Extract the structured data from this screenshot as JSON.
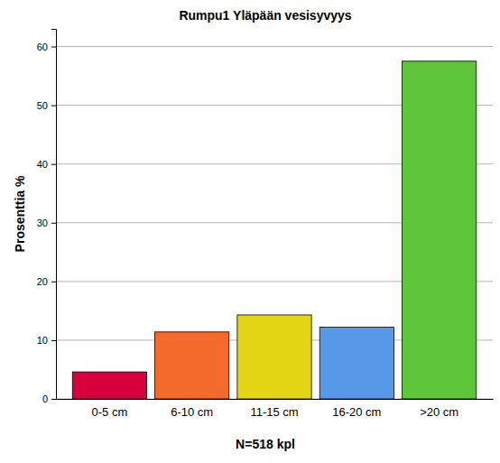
{
  "chart_data": {
    "type": "bar",
    "title": "Rumpu1 Yläpään vesisyvyys",
    "x_label": "N=518 kpl",
    "y_label": "Prosenttia %",
    "categories": [
      "0-5 cm",
      "6-10 cm",
      "11-15 cm",
      "16-20 cm",
      ">20 cm"
    ],
    "values": [
      4.6,
      11.4,
      14.3,
      12.2,
      57.5
    ],
    "colors": [
      "#d8003c",
      "#f46a2c",
      "#e3d514",
      "#5799e8",
      "#5ec43a"
    ],
    "ylim": [
      0,
      63
    ],
    "yticks": [
      0,
      10,
      20,
      30,
      40,
      50,
      60
    ],
    "grid": true
  }
}
